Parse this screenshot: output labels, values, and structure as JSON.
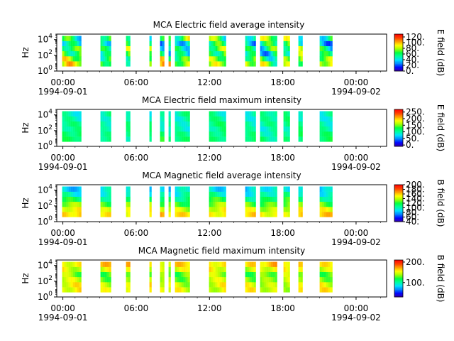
{
  "figure": {
    "background": "#ffffff"
  },
  "colormap": [
    "#3b00a0",
    "#0000ff",
    "#0080ff",
    "#00e0ff",
    "#00ffa0",
    "#00ff40",
    "#a0ff00",
    "#ffff00",
    "#ffa000",
    "#ff4000",
    "#ff0000"
  ],
  "chart_data": [
    {
      "type": "heatmap",
      "title": "MCA  Electric field average intensity",
      "ylabel": "Hz",
      "y_scale": "log",
      "y_ticks": [
        {
          "value": 1,
          "base": "10",
          "exp": "0"
        },
        {
          "value": 100,
          "base": "10",
          "exp": "2"
        },
        {
          "value": 10000,
          "base": "10",
          "exp": "4"
        }
      ],
      "y_range": [
        1,
        50000
      ],
      "x_range": [
        "1994-09-01T00:00",
        "1994-09-02T00:00"
      ],
      "x_ticks": [
        {
          "hour": 0,
          "label": "00:00",
          "date": "1994-09-01"
        },
        {
          "hour": 6,
          "label": "06:00",
          "date": ""
        },
        {
          "hour": 12,
          "label": "12:00",
          "date": ""
        },
        {
          "hour": 18,
          "label": "18:00",
          "date": ""
        },
        {
          "hour": 24,
          "label": "00:00",
          "date": "1994-09-02"
        }
      ],
      "colorbar": {
        "label": "E field (dB)",
        "range": [
          0,
          130
        ],
        "ticks": [
          0,
          20,
          40,
          60,
          80,
          100,
          120
        ],
        "tick_labels": [
          "0.",
          "20.",
          "40.",
          "60.",
          "80.",
          "100.",
          "120."
        ]
      },
      "profile": [
        80,
        70,
        55,
        60,
        50,
        65
      ],
      "variation": 35,
      "data_intervals": [
        [
          -0.05,
          1.45
        ],
        [
          3.0,
          3.95
        ],
        [
          5.1,
          5.5
        ],
        [
          7.0,
          7.3
        ],
        [
          8.0,
          8.25
        ],
        [
          8.6,
          8.85
        ],
        [
          9.15,
          10.45
        ],
        [
          11.9,
          13.3
        ],
        [
          14.95,
          15.85
        ],
        [
          16.1,
          17.45
        ],
        [
          18.0,
          18.5
        ],
        [
          19.3,
          19.6
        ],
        [
          21.0,
          22.0
        ]
      ]
    },
    {
      "type": "heatmap",
      "title": "MCA  Electric field maximum intensity",
      "ylabel": "Hz",
      "y_scale": "log",
      "y_ticks": [
        {
          "value": 1,
          "base": "10",
          "exp": "0"
        },
        {
          "value": 100,
          "base": "10",
          "exp": "2"
        },
        {
          "value": 10000,
          "base": "10",
          "exp": "4"
        }
      ],
      "y_range": [
        1,
        50000
      ],
      "x_range": [
        "1994-09-01T00:00",
        "1994-09-02T00:00"
      ],
      "x_ticks": [
        {
          "hour": 0,
          "label": "00:00",
          "date": "1994-09-01"
        },
        {
          "hour": 6,
          "label": "06:00",
          "date": ""
        },
        {
          "hour": 12,
          "label": "12:00",
          "date": ""
        },
        {
          "hour": 18,
          "label": "18:00",
          "date": ""
        },
        {
          "hour": 24,
          "label": "00:00",
          "date": "1994-09-02"
        }
      ],
      "colorbar": {
        "label": "E field (dB)",
        "range": [
          -10,
          270
        ],
        "ticks": [
          0,
          50,
          100,
          150,
          200,
          250
        ],
        "tick_labels": [
          "0.",
          "50.",
          "100.",
          "150.",
          "200.",
          "250."
        ]
      },
      "profile": [
        115,
        110,
        100,
        105,
        100,
        100
      ],
      "variation": 25,
      "data_intervals": [
        [
          -0.05,
          1.45
        ],
        [
          3.0,
          3.95
        ],
        [
          5.1,
          5.5
        ],
        [
          7.0,
          7.3
        ],
        [
          8.0,
          8.25
        ],
        [
          8.6,
          8.85
        ],
        [
          9.15,
          10.45
        ],
        [
          11.9,
          13.3
        ],
        [
          14.95,
          15.85
        ],
        [
          16.1,
          17.45
        ],
        [
          18.0,
          18.5
        ],
        [
          19.3,
          19.6
        ],
        [
          21.0,
          22.0
        ]
      ]
    },
    {
      "type": "heatmap",
      "title": "MCA  Magnetic field average intensity",
      "ylabel": "Hz",
      "y_scale": "log",
      "y_ticks": [
        {
          "value": 1,
          "base": "10",
          "exp": "0"
        },
        {
          "value": 100,
          "base": "10",
          "exp": "2"
        },
        {
          "value": 10000,
          "base": "10",
          "exp": "4"
        }
      ],
      "y_range": [
        1,
        50000
      ],
      "x_range": [
        "1994-09-01T00:00",
        "1994-09-02T00:00"
      ],
      "x_ticks": [
        {
          "hour": 0,
          "label": "00:00",
          "date": "1994-09-01"
        },
        {
          "hour": 6,
          "label": "06:00",
          "date": ""
        },
        {
          "hour": 12,
          "label": "12:00",
          "date": ""
        },
        {
          "hour": 18,
          "label": "18:00",
          "date": ""
        },
        {
          "hour": 24,
          "label": "00:00",
          "date": "1994-09-02"
        }
      ],
      "colorbar": {
        "label": "B field (dB)",
        "range": [
          40,
          200
        ],
        "ticks": [
          40,
          60,
          80,
          100,
          120,
          140,
          160,
          180,
          200
        ],
        "tick_labels": [
          "40.",
          "60.",
          "80.",
          "100.",
          "120.",
          "140.",
          "160.",
          "180.",
          "200."
        ]
      },
      "profile": [
        155,
        145,
        130,
        115,
        100,
        90
      ],
      "variation": 15,
      "data_intervals": [
        [
          -0.05,
          1.45
        ],
        [
          3.0,
          3.95
        ],
        [
          5.1,
          5.5
        ],
        [
          7.0,
          7.3
        ],
        [
          8.0,
          8.25
        ],
        [
          8.6,
          8.85
        ],
        [
          9.15,
          10.45
        ],
        [
          11.9,
          13.3
        ],
        [
          14.95,
          15.85
        ],
        [
          16.1,
          17.45
        ],
        [
          18.0,
          18.5
        ],
        [
          19.3,
          19.6
        ],
        [
          21.0,
          22.0
        ]
      ]
    },
    {
      "type": "heatmap",
      "title": "MCA  Magnetic field maximum intensity",
      "ylabel": "Hz",
      "y_scale": "log",
      "y_ticks": [
        {
          "value": 1,
          "base": "10",
          "exp": "0"
        },
        {
          "value": 100,
          "base": "10",
          "exp": "2"
        },
        {
          "value": 10000,
          "base": "10",
          "exp": "4"
        }
      ],
      "y_range": [
        1,
        50000
      ],
      "x_range": [
        "1994-09-01T00:00",
        "1994-09-02T00:00"
      ],
      "x_ticks": [
        {
          "hour": 0,
          "label": "00:00",
          "date": "1994-09-01"
        },
        {
          "hour": 6,
          "label": "06:00",
          "date": ""
        },
        {
          "hour": 12,
          "label": "12:00",
          "date": ""
        },
        {
          "hour": 18,
          "label": "18:00",
          "date": ""
        },
        {
          "hour": 24,
          "label": "00:00",
          "date": "1994-09-02"
        }
      ],
      "colorbar": {
        "label": "B field (dB)",
        "range": [
          30,
          210
        ],
        "ticks": [
          100,
          200
        ],
        "tick_labels": [
          "100.",
          "200."
        ]
      },
      "profile": [
        150,
        148,
        140,
        135,
        150,
        160
      ],
      "variation": 18,
      "data_intervals": [
        [
          -0.05,
          1.45
        ],
        [
          3.0,
          3.95
        ],
        [
          5.1,
          5.5
        ],
        [
          7.0,
          7.3
        ],
        [
          8.0,
          8.25
        ],
        [
          8.6,
          8.85
        ],
        [
          9.15,
          10.45
        ],
        [
          11.9,
          13.3
        ],
        [
          14.95,
          15.85
        ],
        [
          16.1,
          17.45
        ],
        [
          18.0,
          18.5
        ],
        [
          19.3,
          19.6
        ],
        [
          21.0,
          22.0
        ]
      ]
    }
  ]
}
